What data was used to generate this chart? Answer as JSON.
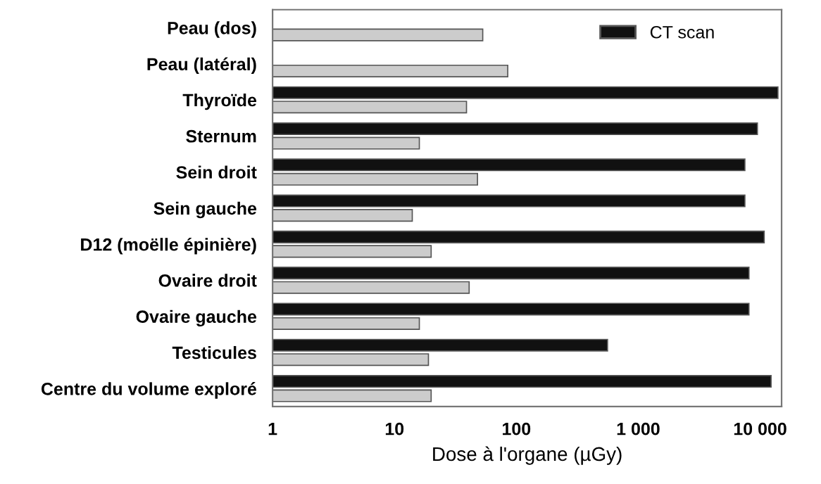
{
  "chart_data": {
    "type": "bar",
    "orientation": "horizontal",
    "log": "x",
    "xlabel": "Dose à l'organe (µGy)",
    "categories": [
      "Peau (dos)",
      "Peau (latéral)",
      "Thyroïde",
      "Sternum",
      "Sein droit",
      "Sein gauche",
      "D12 (moëlle épinière)",
      "Ovaire droit",
      "Ovaire gauche",
      "Testicules",
      "Centre du volume exploré"
    ],
    "series": [
      {
        "name": "CT scan",
        "color": "#111111",
        "values": [
          null,
          null,
          14000,
          9500,
          7500,
          7500,
          10800,
          8100,
          8100,
          560,
          12300
        ]
      },
      {
        "color": "#cccccc",
        "values": [
          53,
          85,
          39,
          16,
          48,
          14,
          20,
          41,
          16,
          19,
          20
        ]
      }
    ],
    "xlim": [
      1,
      15000
    ],
    "xticks": [
      1,
      10,
      100,
      {
        "value": 1000,
        "label": "1 000"
      },
      {
        "value": 10000,
        "label": "10 000"
      }
    ],
    "grid": false,
    "legend": "top right"
  }
}
